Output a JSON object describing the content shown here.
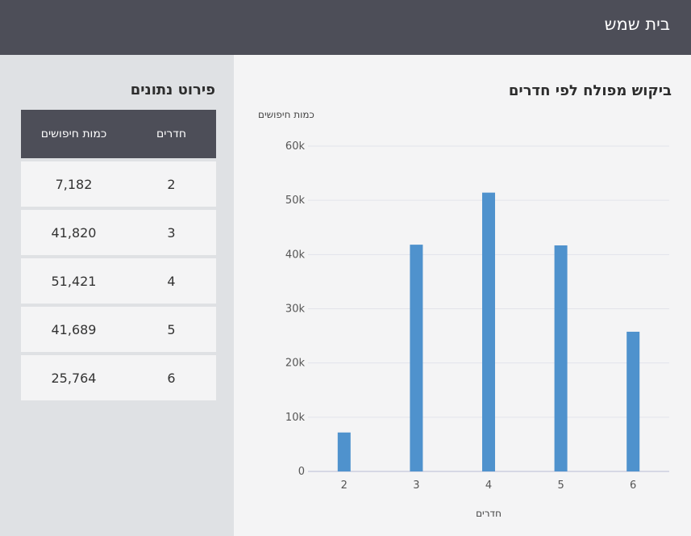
{
  "header": {
    "title": "בית שמש"
  },
  "chart_panel": {
    "title": "ביקוש מפולח לפי חדרים"
  },
  "table_panel": {
    "title": "פירוט נתונים",
    "columns": {
      "rooms": "חדרים",
      "count": "כמות חיפושים"
    },
    "rows": [
      {
        "rooms": "2",
        "count": "7,182"
      },
      {
        "rooms": "3",
        "count": "41,820"
      },
      {
        "rooms": "4",
        "count": "51,421"
      },
      {
        "rooms": "5",
        "count": "41,689"
      },
      {
        "rooms": "6",
        "count": "25,764"
      }
    ]
  },
  "colors": {
    "bar": "#4f92cd",
    "header_bg": "#4d4e58",
    "grid": "#e2e3ea"
  },
  "chart_data": {
    "type": "bar",
    "categories": [
      "2",
      "3",
      "4",
      "5",
      "6"
    ],
    "values": [
      7182,
      41820,
      51421,
      41689,
      25764
    ],
    "xlabel": "חדרים",
    "ylabel": "כמות חיפושים",
    "ylim": [
      0,
      60000
    ],
    "yticks": [
      0,
      10000,
      20000,
      30000,
      40000,
      50000,
      60000
    ],
    "ytick_labels": [
      "0",
      "10k",
      "20k",
      "30k",
      "40k",
      "50k",
      "60k"
    ],
    "grid": true
  }
}
